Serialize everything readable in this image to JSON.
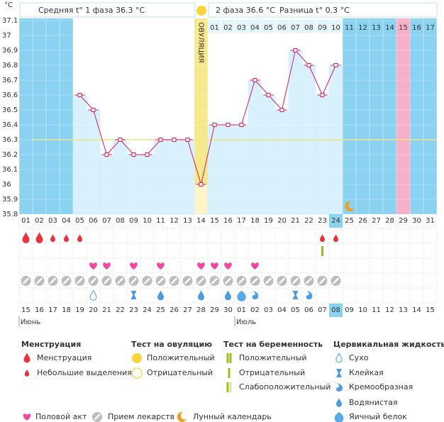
{
  "chart_data": {
    "type": "line",
    "header": {
      "phase1": "Средняя t° 1 фаза 36.3 °C",
      "phase2": "2 фаза 36.6 °C",
      "difference": "Разница t° 0.3 °C"
    },
    "y_unit": "°C",
    "ylim": [
      35.8,
      37.1
    ],
    "yticks": [
      35.8,
      35.9,
      36,
      36.1,
      36.2,
      36.3,
      36.4,
      36.5,
      36.6,
      36.7,
      36.8,
      36.9,
      37,
      37.1
    ],
    "grid": true,
    "categories": [
      "01",
      "02",
      "03",
      "04",
      "05",
      "06",
      "07",
      "08",
      "09",
      "10",
      "11",
      "12",
      "13",
      "14",
      "15",
      "16",
      "17",
      "18",
      "19",
      "20",
      "21",
      "22",
      "23",
      "24",
      "25",
      "26",
      "27",
      "28",
      "29",
      "30",
      "31"
    ],
    "values": [
      null,
      null,
      null,
      null,
      36.6,
      36.5,
      36.2,
      36.3,
      36.2,
      36.2,
      36.3,
      36.3,
      36.3,
      36.0,
      36.4,
      36.4,
      36.4,
      36.7,
      36.6,
      36.5,
      36.9,
      36.8,
      36.6,
      36.8,
      null,
      null,
      null,
      null,
      null,
      null,
      null
    ],
    "color": "#d81b5a",
    "coverline": 36.3,
    "coverline_color": "#ece58a",
    "phase2_days": [
      null,
      null,
      null,
      null,
      null,
      null,
      null,
      null,
      null,
      null,
      null,
      null,
      null,
      null,
      "01",
      "02",
      "03",
      "04",
      "05",
      "06",
      "07",
      "08",
      "09",
      "10",
      "11",
      "12",
      "13",
      "14",
      "15",
      "16",
      "17"
    ],
    "ovulation_day": "14",
    "ovulation_label": "ОВУЛЯЦИЯ",
    "expected_period_day": "29",
    "today": "24",
    "moon_day": "25",
    "menstruation": {
      "heavy": [
        "01",
        "02"
      ],
      "light": [
        "03",
        "04",
        "05",
        "23",
        "24"
      ]
    },
    "pregnancy_test": {
      "negative": [
        "23"
      ]
    },
    "intercourse": [
      "06",
      "07",
      "09",
      "11",
      "14",
      "15",
      "16",
      "18"
    ],
    "medication": [
      "01",
      "02",
      "03",
      "04",
      "05",
      "06",
      "07",
      "08",
      "09",
      "10",
      "11",
      "12",
      "13",
      "14",
      "15",
      "16",
      "17",
      "18",
      "19",
      "20",
      "21",
      "22",
      "23",
      "24"
    ],
    "cervical": {
      "dry": [
        "06"
      ],
      "sticky": [
        "09",
        "21"
      ],
      "creamy": [
        "18",
        "22"
      ],
      "watery": [
        "11",
        "14",
        "16"
      ],
      "egg_white": [
        "17"
      ]
    },
    "dates": [
      "15",
      "16",
      "17",
      "18",
      "19",
      "20",
      "21",
      "22",
      "23",
      "24",
      "25",
      "26",
      "27",
      "28",
      "29",
      "30",
      "01",
      "02",
      "03",
      "04",
      "05",
      "06",
      "07",
      "08",
      "09",
      "10",
      "11",
      "12",
      "13",
      "14",
      "15"
    ],
    "weekend": [
      3,
      4,
      10,
      11,
      17,
      18,
      24,
      25
    ],
    "months": [
      {
        "label": "Июнь",
        "start": 0
      },
      {
        "label": "Июль",
        "start": 16
      }
    ],
    "legend": {
      "menstruation": {
        "title": "Менструация",
        "items": [
          "Менструация",
          "Небольшие выделения"
        ]
      },
      "ovulation_test": {
        "title": "Тест на овуляцию",
        "items": [
          "Положительный",
          "Отрицательный"
        ]
      },
      "pregnancy_test": {
        "title": "Тест на беременность",
        "items": [
          "Положительный",
          "Отрицательный",
          "Слабоположительный"
        ]
      },
      "cervical": {
        "title": "Цервикальная жидкость",
        "items": [
          "Сухо",
          "Клейкая",
          "Кремообразная",
          "Водянистая",
          "Яичный белок"
        ]
      },
      "other": [
        "Половой акт",
        "Прием лекарств",
        "Лунный календарь"
      ]
    }
  }
}
